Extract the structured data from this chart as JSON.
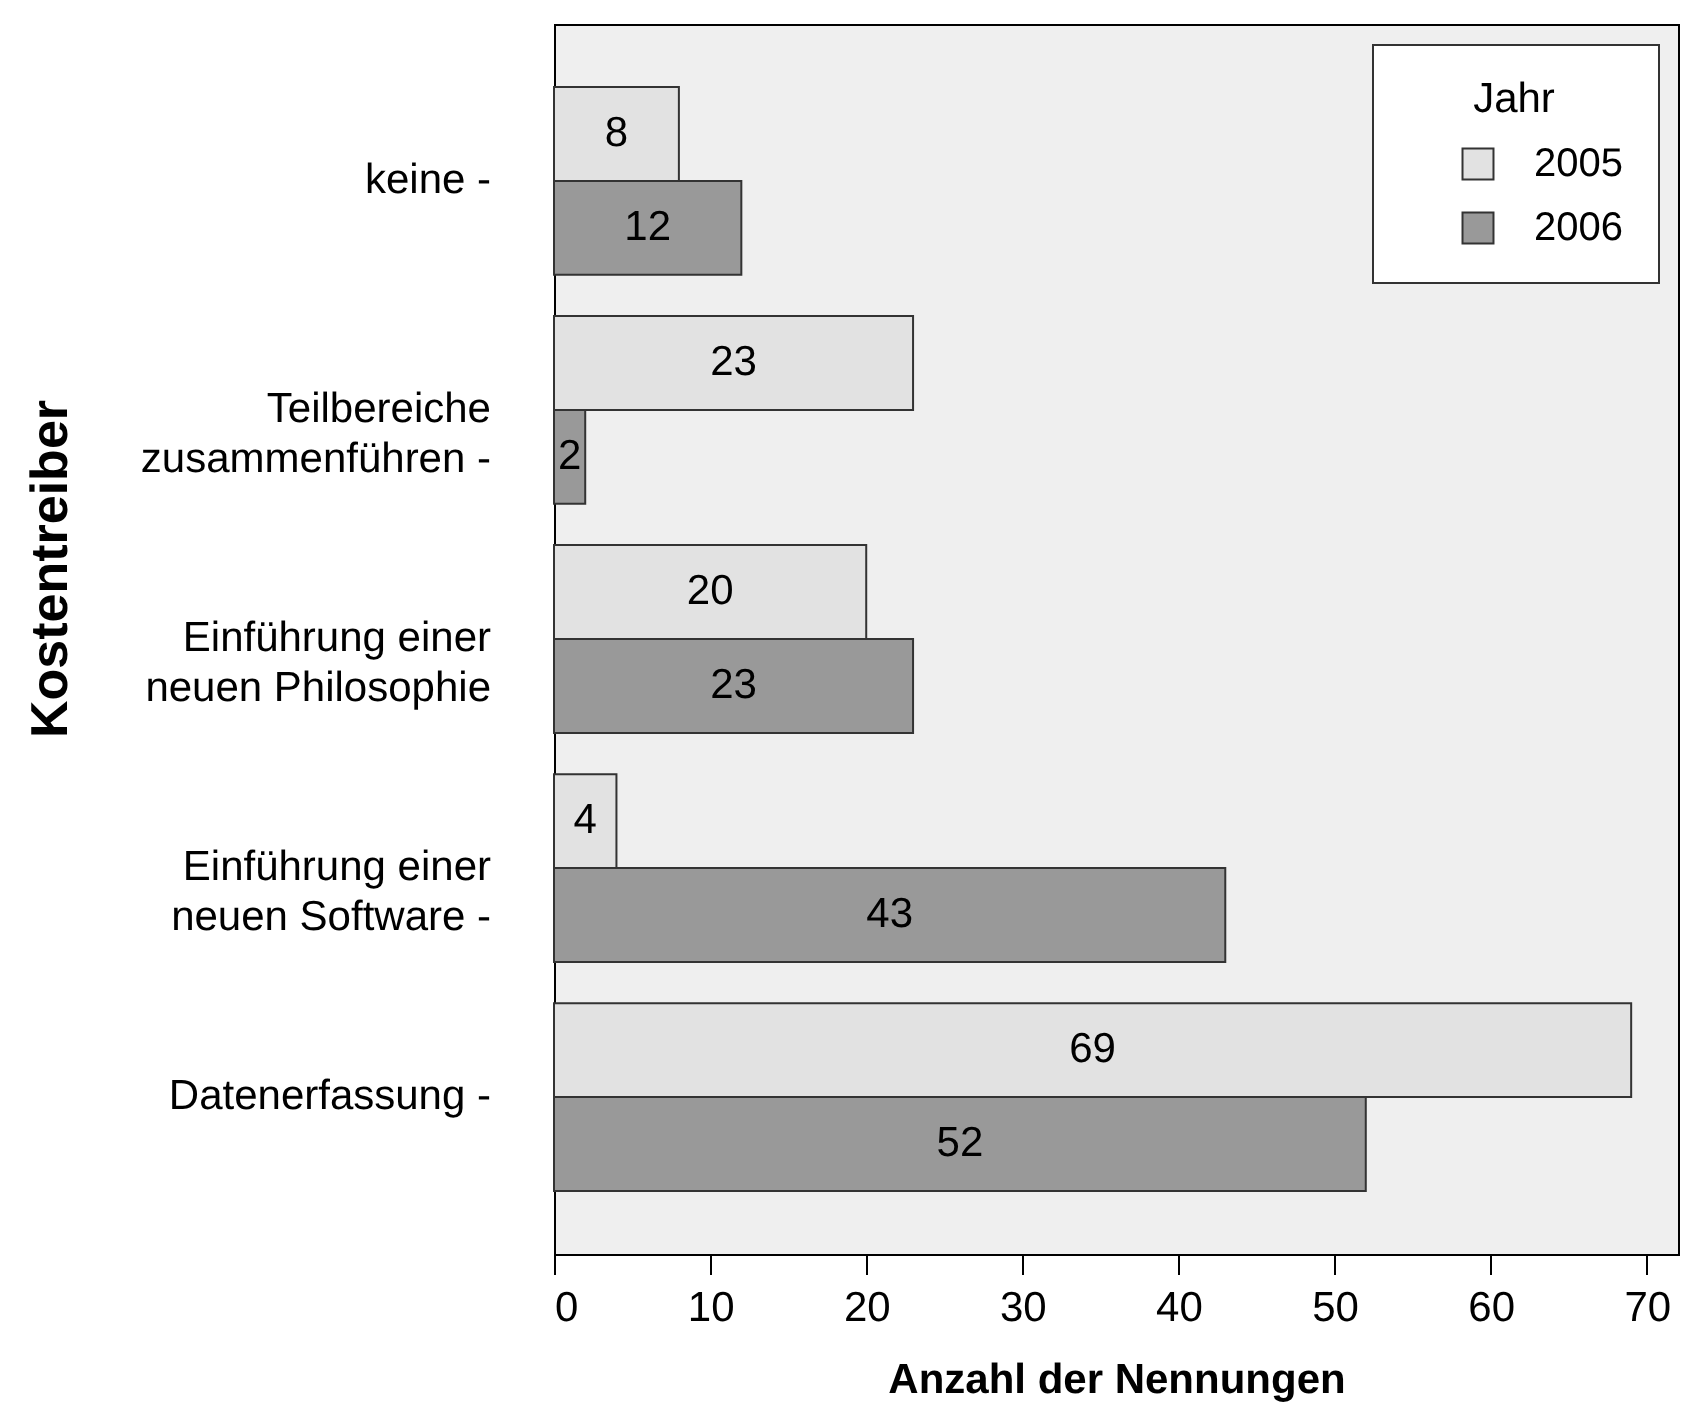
{
  "chart_data": {
    "type": "bar",
    "orientation": "horizontal",
    "xlabel": "Anzahl der Nennungen",
    "ylabel": "Kostentreiber",
    "legend_title": "Jahr",
    "legend": "top right",
    "categories": [
      "keine -",
      "Teilbereiche\nzusammenführen -",
      "Einführung einer\nneuen Philosophie",
      "Einführung einer\nneuen Software -",
      "Datenerfassung -"
    ],
    "series": [
      {
        "name": "2005",
        "color": "#e2e2e2",
        "values": [
          8,
          23,
          20,
          4,
          69
        ]
      },
      {
        "name": "2006",
        "color": "#999999",
        "values": [
          12,
          2,
          23,
          43,
          52
        ]
      }
    ],
    "xlim": [
      0,
      72
    ],
    "xticks": [
      0,
      10,
      20,
      30,
      40,
      50,
      60,
      70
    ],
    "data_labels": true
  }
}
